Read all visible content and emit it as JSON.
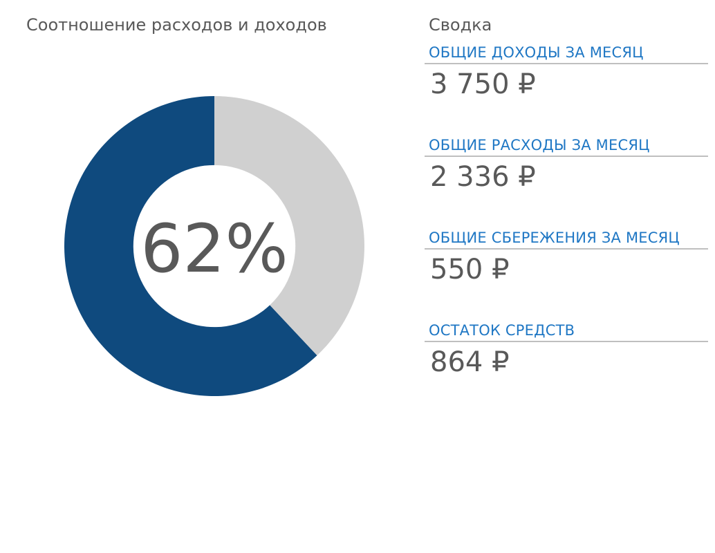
{
  "chart_data": {
    "type": "pie",
    "title": "Соотношение расходов и доходов",
    "center_label": "62%",
    "slices": [
      {
        "label": "",
        "value": 62,
        "color": "#0f4a7e"
      },
      {
        "label": "",
        "value": 38,
        "color": "#d0d0d0"
      }
    ],
    "hole": 0.54
  },
  "summary": {
    "title": "Сводка",
    "items": [
      {
        "label": "ОБЩИЕ ДОХОДЫ ЗА МЕСЯЦ",
        "value": "3 750 ₽"
      },
      {
        "label": "ОБЩИЕ РАСХОДЫ ЗА МЕСЯЦ",
        "value": "2 336 ₽"
      },
      {
        "label": "ОБЩИЕ СБЕРЕЖЕНИЯ ЗА МЕСЯЦ",
        "value": "550 ₽"
      },
      {
        "label": "ОСТАТОК СРЕДСТВ",
        "value": "864 ₽"
      }
    ]
  }
}
